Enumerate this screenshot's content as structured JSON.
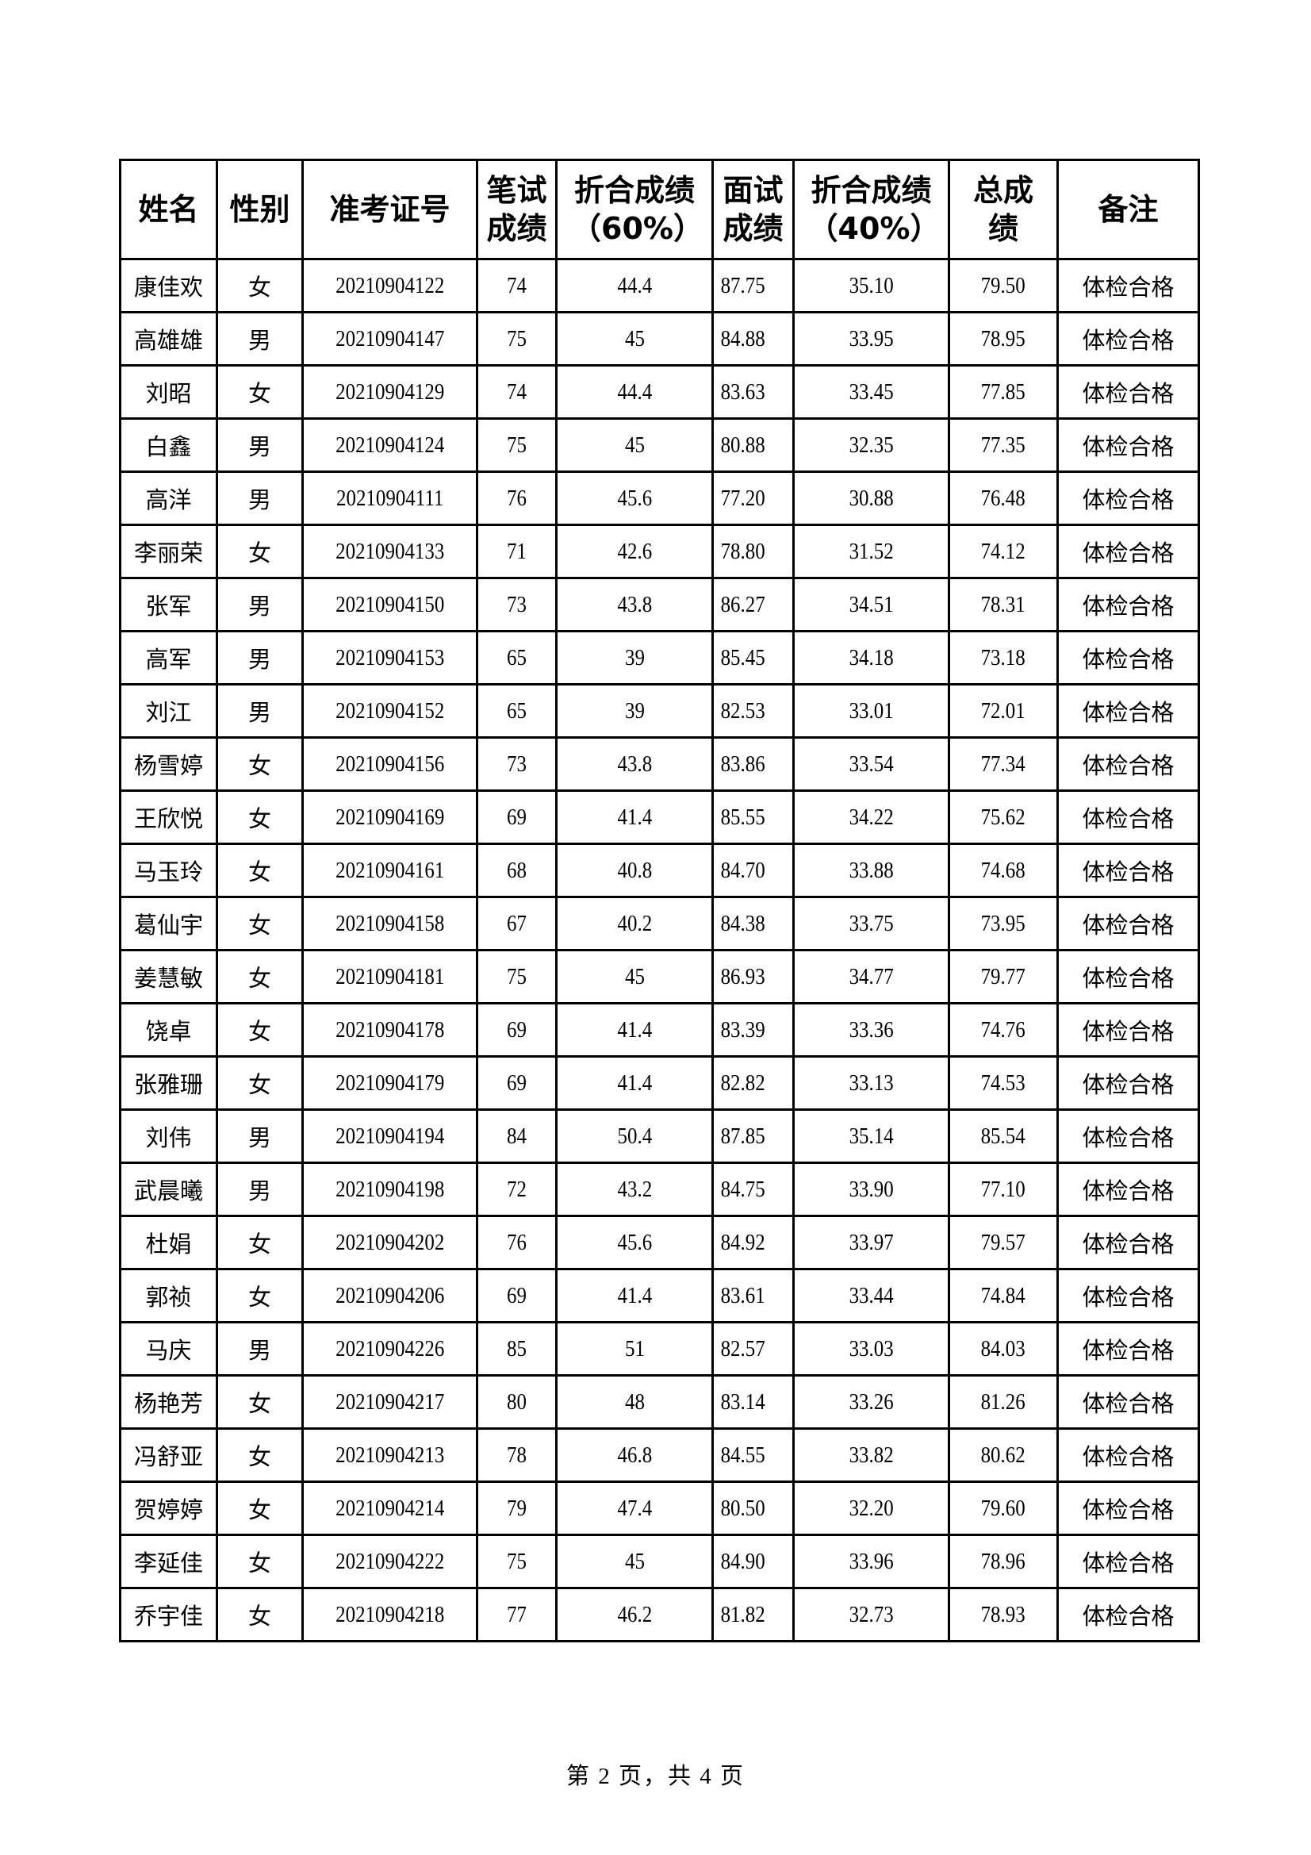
{
  "table": {
    "headers": [
      "姓名",
      "性别",
      "准考证号",
      "笔试成绩",
      "折合成绩（60%）",
      "面试成绩",
      "折合成绩（40%）",
      "总成绩",
      "备注"
    ],
    "header_lines": [
      [
        "姓名"
      ],
      [
        "性别"
      ],
      [
        "准考证号"
      ],
      [
        "笔试",
        "成绩"
      ],
      [
        "折合成绩",
        "（60%）"
      ],
      [
        "面试",
        "成绩"
      ],
      [
        "折合成绩",
        "（40%）"
      ],
      [
        "总成",
        "绩"
      ],
      [
        "备注"
      ]
    ],
    "rows": [
      [
        "康佳欢",
        "女",
        "20210904122",
        "74",
        "44.4",
        "87.75",
        "35.10",
        "79.50",
        "体检合格"
      ],
      [
        "高雄雄",
        "男",
        "20210904147",
        "75",
        "45",
        "84.88",
        "33.95",
        "78.95",
        "体检合格"
      ],
      [
        "刘昭",
        "女",
        "20210904129",
        "74",
        "44.4",
        "83.63",
        "33.45",
        "77.85",
        "体检合格"
      ],
      [
        "白鑫",
        "男",
        "20210904124",
        "75",
        "45",
        "80.88",
        "32.35",
        "77.35",
        "体检合格"
      ],
      [
        "高洋",
        "男",
        "20210904111",
        "76",
        "45.6",
        "77.20",
        "30.88",
        "76.48",
        "体检合格"
      ],
      [
        "李丽荣",
        "女",
        "20210904133",
        "71",
        "42.6",
        "78.80",
        "31.52",
        "74.12",
        "体检合格"
      ],
      [
        "张军",
        "男",
        "20210904150",
        "73",
        "43.8",
        "86.27",
        "34.51",
        "78.31",
        "体检合格"
      ],
      [
        "高军",
        "男",
        "20210904153",
        "65",
        "39",
        "85.45",
        "34.18",
        "73.18",
        "体检合格"
      ],
      [
        "刘江",
        "男",
        "20210904152",
        "65",
        "39",
        "82.53",
        "33.01",
        "72.01",
        "体检合格"
      ],
      [
        "杨雪婷",
        "女",
        "20210904156",
        "73",
        "43.8",
        "83.86",
        "33.54",
        "77.34",
        "体检合格"
      ],
      [
        "王欣悦",
        "女",
        "20210904169",
        "69",
        "41.4",
        "85.55",
        "34.22",
        "75.62",
        "体检合格"
      ],
      [
        "马玉玲",
        "女",
        "20210904161",
        "68",
        "40.8",
        "84.70",
        "33.88",
        "74.68",
        "体检合格"
      ],
      [
        "葛仙宇",
        "女",
        "20210904158",
        "67",
        "40.2",
        "84.38",
        "33.75",
        "73.95",
        "体检合格"
      ],
      [
        "姜慧敏",
        "女",
        "20210904181",
        "75",
        "45",
        "86.93",
        "34.77",
        "79.77",
        "体检合格"
      ],
      [
        "饶卓",
        "女",
        "20210904178",
        "69",
        "41.4",
        "83.39",
        "33.36",
        "74.76",
        "体检合格"
      ],
      [
        "张雅珊",
        "女",
        "20210904179",
        "69",
        "41.4",
        "82.82",
        "33.13",
        "74.53",
        "体检合格"
      ],
      [
        "刘伟",
        "男",
        "20210904194",
        "84",
        "50.4",
        "87.85",
        "35.14",
        "85.54",
        "体检合格"
      ],
      [
        "武晨曦",
        "男",
        "20210904198",
        "72",
        "43.2",
        "84.75",
        "33.90",
        "77.10",
        "体检合格"
      ],
      [
        "杜娟",
        "女",
        "20210904202",
        "76",
        "45.6",
        "84.92",
        "33.97",
        "79.57",
        "体检合格"
      ],
      [
        "郭祯",
        "女",
        "20210904206",
        "69",
        "41.4",
        "83.61",
        "33.44",
        "74.84",
        "体检合格"
      ],
      [
        "马庆",
        "男",
        "20210904226",
        "85",
        "51",
        "82.57",
        "33.03",
        "84.03",
        "体检合格"
      ],
      [
        "杨艳芳",
        "女",
        "20210904217",
        "80",
        "48",
        "83.14",
        "33.26",
        "81.26",
        "体检合格"
      ],
      [
        "冯舒亚",
        "女",
        "20210904213",
        "78",
        "46.8",
        "84.55",
        "33.82",
        "80.62",
        "体检合格"
      ],
      [
        "贺婷婷",
        "女",
        "20210904214",
        "79",
        "47.4",
        "80.50",
        "32.20",
        "79.60",
        "体检合格"
      ],
      [
        "李延佳",
        "女",
        "20210904222",
        "75",
        "45",
        "84.90",
        "33.96",
        "78.96",
        "体检合格"
      ],
      [
        "乔宇佳",
        "女",
        "20210904218",
        "77",
        "46.2",
        "81.82",
        "32.73",
        "78.93",
        "体检合格"
      ]
    ]
  },
  "footer": "第 2 页，共 4 页"
}
